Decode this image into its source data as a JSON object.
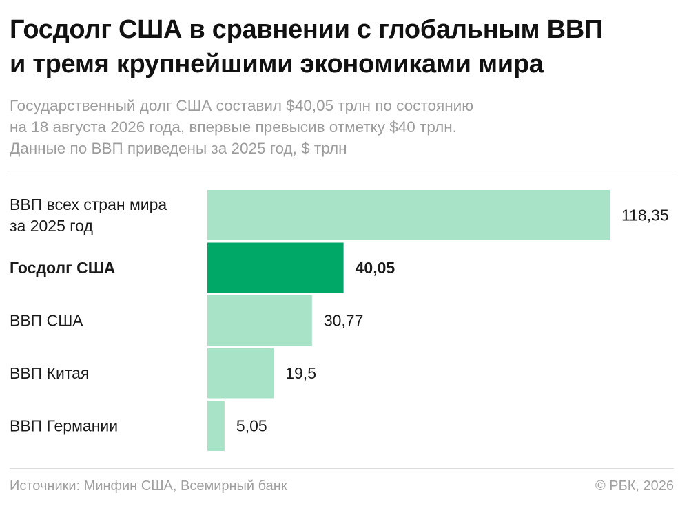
{
  "title_lines": [
    "Госдолг США в сравнении с глобальным ВВП",
    "и тремя крупнейшими экономиками мира"
  ],
  "subtitle_lines": [
    "Государственный долг США составил $40,05 трлн по состоянию",
    "на 18 августа 2026 года, впервые превысив отметку $40 трлн.",
    "Данные по ВВП приведены за 2025 год, $ трлн"
  ],
  "colors": {
    "highlight": "#00a867",
    "normal": "#a8e3c7"
  },
  "chart_data": {
    "type": "bar",
    "orientation": "horizontal",
    "categories": [
      [
        "ВВП всех стран мира",
        "за 2025 год"
      ],
      [
        "Госдолг США"
      ],
      [
        "ВВП США"
      ],
      [
        "ВВП Китая"
      ],
      [
        "ВВП Германии"
      ]
    ],
    "values": [
      118.35,
      40.05,
      30.77,
      19.5,
      5.05
    ],
    "value_labels": [
      "118,35",
      "40,05",
      "30,77",
      "19,5",
      "5,05"
    ],
    "highlight_index": 1,
    "xlim": [
      0,
      118.35
    ],
    "grid": false,
    "legend": "none"
  },
  "footer": {
    "source": "Источники: Минфин США, Всемирный банк",
    "credit": "© РБК, 2026"
  }
}
